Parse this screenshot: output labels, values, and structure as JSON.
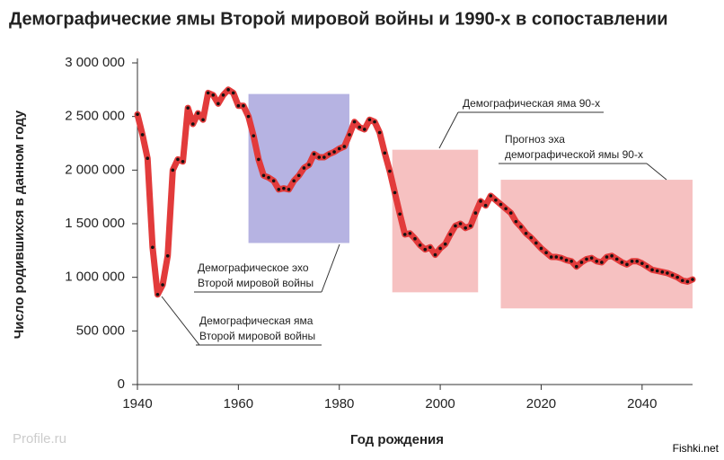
{
  "chart_data": {
    "type": "line",
    "title": "Демографические ямы Второй мировой войны и 1990-х в сопоставлении",
    "x_label": "Год рождения",
    "y_label": "Число родившихся в данном году",
    "xlim": [
      1940,
      2050
    ],
    "xticks": [
      1940,
      1960,
      1980,
      2000,
      2020,
      2040
    ],
    "ylim": [
      0,
      3000000
    ],
    "yticks": [
      0,
      {
        "value": 500000,
        "label": "500 000"
      },
      {
        "value": 1000000,
        "label": "1 000 000"
      },
      {
        "value": 1500000,
        "label": "1 500 000"
      },
      {
        "value": 2000000,
        "label": "2 000 000"
      },
      {
        "value": 2500000,
        "label": "2 500 000"
      },
      {
        "value": 3000000,
        "label": "3 000 000"
      }
    ],
    "x": [
      1940,
      1941,
      1942,
      1943,
      1944,
      1945,
      1946,
      1947,
      1948,
      1949,
      1950,
      1951,
      1952,
      1953,
      1954,
      1955,
      1956,
      1957,
      1958,
      1959,
      1960,
      1961,
      1962,
      1963,
      1964,
      1965,
      1966,
      1967,
      1968,
      1969,
      1970,
      1971,
      1972,
      1973,
      1974,
      1975,
      1976,
      1977,
      1978,
      1979,
      1980,
      1981,
      1982,
      1983,
      1984,
      1985,
      1986,
      1987,
      1988,
      1989,
      1990,
      1991,
      1992,
      1993,
      1994,
      1995,
      1996,
      1997,
      1998,
      1999,
      2000,
      2001,
      2002,
      2003,
      2004,
      2005,
      2006,
      2007,
      2008,
      2009,
      2010,
      2011,
      2012,
      2013,
      2014,
      2015,
      2016,
      2017,
      2018,
      2019,
      2020,
      2021,
      2022,
      2023,
      2024,
      2025,
      2026,
      2027,
      2028,
      2029,
      2030,
      2031,
      2032,
      2033,
      2034,
      2035,
      2036,
      2037,
      2038,
      2039,
      2040,
      2041,
      2042,
      2043,
      2044,
      2045,
      2046,
      2047,
      2048,
      2049,
      2050
    ],
    "series": [
      {
        "color": "#e23b3b",
        "values": [
          2520000,
          2330000,
          2110000,
          1280000,
          840000,
          930000,
          1200000,
          2000000,
          2100000,
          2080000,
          2580000,
          2430000,
          2530000,
          2470000,
          2720000,
          2700000,
          2620000,
          2700000,
          2750000,
          2720000,
          2600000,
          2600000,
          2500000,
          2320000,
          2100000,
          1950000,
          1930000,
          1900000,
          1820000,
          1830000,
          1820000,
          1900000,
          1950000,
          2020000,
          2050000,
          2150000,
          2120000,
          2120000,
          2150000,
          2170000,
          2200000,
          2220000,
          2330000,
          2450000,
          2400000,
          2380000,
          2470000,
          2450000,
          2350000,
          2160000,
          1990000,
          1790000,
          1590000,
          1400000,
          1410000,
          1360000,
          1300000,
          1260000,
          1280000,
          1210000,
          1270000,
          1310000,
          1400000,
          1480000,
          1500000,
          1460000,
          1480000,
          1600000,
          1710000,
          1670000,
          1760000,
          1720000,
          1680000,
          1640000,
          1600000,
          1520000,
          1470000,
          1410000,
          1370000,
          1320000,
          1270000,
          1230000,
          1190000,
          1190000,
          1180000,
          1160000,
          1150000,
          1100000,
          1140000,
          1170000,
          1180000,
          1150000,
          1140000,
          1190000,
          1200000,
          1170000,
          1140000,
          1120000,
          1150000,
          1150000,
          1130000,
          1100000,
          1070000,
          1060000,
          1050000,
          1040000,
          1020000,
          1000000,
          970000,
          960000,
          980000
        ]
      }
    ],
    "regions": [
      {
        "x": [
          1962,
          1982
        ],
        "y": [
          1320000,
          2710000
        ],
        "color": "#a9a6dd"
      },
      {
        "x": [
          1990.5,
          2007.5
        ],
        "y": [
          860000,
          2190000
        ],
        "color": "#f4b6b6"
      },
      {
        "x": [
          2012,
          2050
        ],
        "y": [
          710000,
          1910000
        ],
        "color": "#f4b6b6"
      }
    ],
    "annotations": [
      {
        "lines": [
          "Демографическая яма 90-х"
        ]
      },
      {
        "lines": [
          "Прогноз эха",
          "демографической ямы 90-х"
        ]
      },
      {
        "lines": [
          "Демографическое эхо",
          "Второй мировой войны"
        ]
      },
      {
        "lines": [
          "Демографическая яма",
          "Второй мировой войны"
        ]
      }
    ],
    "watermarks": [
      "Profile.ru",
      "Fishki.net"
    ]
  }
}
